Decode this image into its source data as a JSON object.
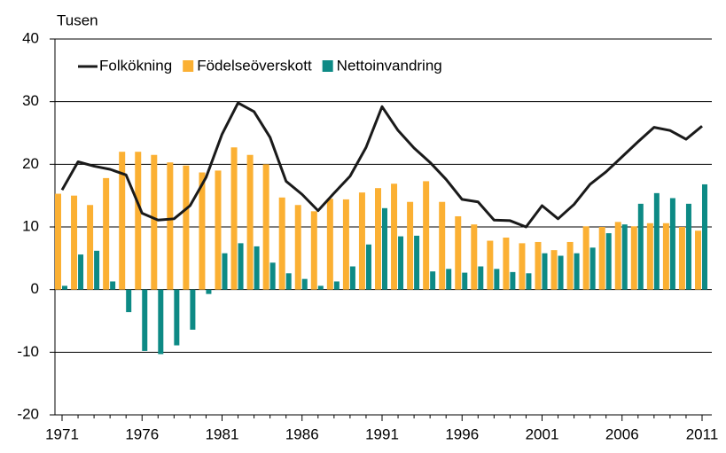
{
  "chart_data": {
    "type": "bar_line",
    "y_label": "Tusen",
    "categories": [
      "1971",
      null,
      null,
      null,
      null,
      "1976",
      null,
      null,
      null,
      null,
      "1981",
      null,
      null,
      null,
      null,
      "1986",
      null,
      null,
      null,
      null,
      "1991",
      null,
      null,
      null,
      null,
      "1996",
      null,
      null,
      null,
      null,
      "2001",
      null,
      null,
      null,
      null,
      "2006",
      null,
      null,
      null,
      null,
      "2011"
    ],
    "series": [
      {
        "name": "Folkökning",
        "kind": "line",
        "color": "#1a1a1a",
        "values": [
          15.9,
          20.4,
          19.7,
          19.2,
          18.3,
          12.2,
          11.1,
          11.3,
          13.4,
          17.9,
          24.8,
          29.8,
          28.4,
          24.3,
          17.3,
          15.2,
          12.6,
          15.4,
          18.1,
          22.7,
          29.2,
          25.4,
          22.6,
          20.3,
          17.6,
          14.4,
          14.0,
          11.1,
          11.0,
          10.0,
          13.4,
          11.3,
          13.6,
          16.8,
          18.8,
          21.2,
          23.6,
          25.9,
          25.4,
          24.0,
          26.1
        ]
      },
      {
        "name": "Födelseöverskott",
        "kind": "bar",
        "color": "#fbb033",
        "values": [
          15.3,
          15.0,
          13.5,
          17.8,
          22.0,
          22.0,
          21.5,
          20.3,
          19.8,
          18.7,
          19.0,
          22.7,
          21.5,
          20.0,
          14.7,
          13.5,
          12.5,
          14.5,
          14.4,
          15.5,
          16.2,
          16.9,
          14.0,
          17.3,
          14.0,
          11.7,
          10.4,
          7.8,
          8.3,
          7.4,
          7.6,
          6.3,
          7.6,
          10.1,
          10.0,
          10.8,
          10.1,
          10.6,
          10.6,
          10.0,
          9.4
        ]
      },
      {
        "name": "Nettoinvandring",
        "kind": "bar",
        "color": "#0d8a85",
        "values": [
          0.6,
          5.6,
          6.2,
          1.3,
          -3.6,
          -9.8,
          -10.3,
          -8.9,
          -6.4,
          -0.7,
          5.8,
          7.4,
          6.9,
          4.3,
          2.6,
          1.7,
          0.6,
          1.3,
          3.7,
          7.2,
          13.0,
          8.5,
          8.6,
          2.9,
          3.3,
          2.7,
          3.7,
          3.3,
          2.8,
          2.6,
          5.8,
          5.4,
          5.8,
          6.7,
          9.0,
          10.4,
          13.7,
          15.4,
          14.6,
          13.7,
          16.8
        ]
      }
    ],
    "ylim": [
      -20,
      40
    ],
    "yticks": [
      -20,
      -10,
      0,
      10,
      20,
      30,
      40
    ],
    "grid": true,
    "legend": "top-left"
  }
}
